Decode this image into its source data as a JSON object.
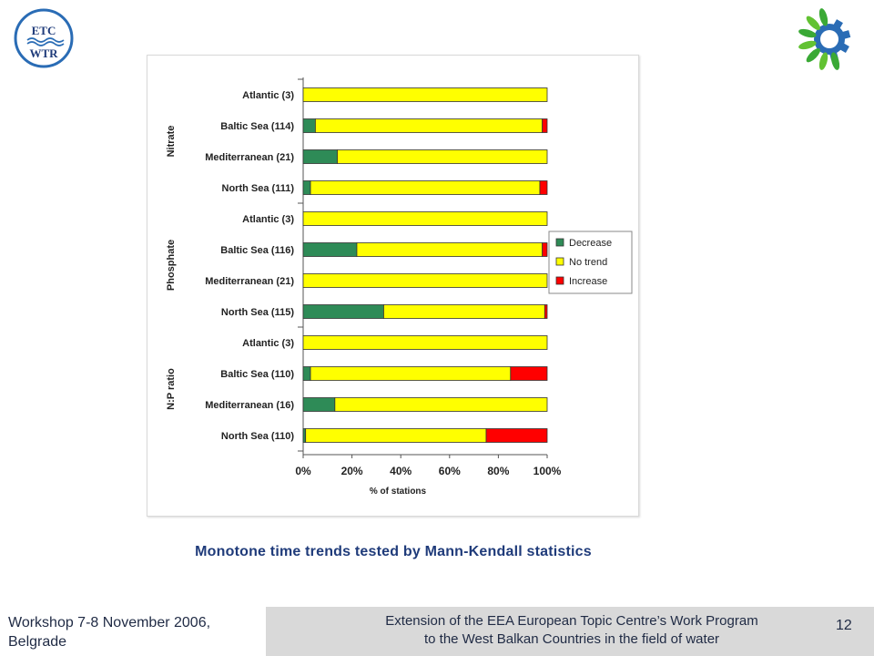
{
  "slide": {
    "caption": "Monotone time trends tested by Mann-Kendall statistics",
    "page_number": "12"
  },
  "footer": {
    "left_line1": "Workshop 7-8 November 2006,",
    "left_line2": "Belgrade",
    "center_line1": "Extension of the EEA European Topic Centre’s Work Program",
    "center_line2": "to the West Balkan Countries in the field of water"
  },
  "logos": {
    "left_top": "ETC",
    "left_bottom": "WTR"
  },
  "colors": {
    "decrease": "#2e8b57",
    "no_trend": "#ffff00",
    "increase": "#ff0000",
    "caption": "#1f3b7a"
  },
  "chart_data": {
    "type": "bar",
    "orientation": "horizontal",
    "stacked": true,
    "xlabel": "% of stations",
    "xlim": [
      0,
      100
    ],
    "xticks": [
      "0%",
      "20%",
      "40%",
      "60%",
      "80%",
      "100%"
    ],
    "legend_position": "right",
    "groups": [
      "Nitrate",
      "Phosphate",
      "N:P ratio"
    ],
    "categories": [
      "Atlantic (3)",
      "Baltic Sea (114)",
      "Mediterranean (21)",
      "North Sea (111)",
      "Atlantic (3)",
      "Baltic Sea (116)",
      "Mediterranean (21)",
      "North Sea (115)",
      "Atlantic (3)",
      "Baltic Sea (110)",
      "Mediterranean (16)",
      "North Sea (110)"
    ],
    "series": [
      {
        "name": "Decrease",
        "values": [
          0,
          5,
          14,
          3,
          0,
          22,
          0,
          33,
          0,
          3,
          13,
          1
        ]
      },
      {
        "name": "No trend",
        "values": [
          100,
          93,
          86,
          94,
          100,
          76,
          100,
          66,
          100,
          82,
          87,
          74
        ]
      },
      {
        "name": "Increase",
        "values": [
          0,
          2,
          0,
          3,
          0,
          2,
          0,
          1,
          0,
          15,
          0,
          25
        ]
      }
    ]
  }
}
